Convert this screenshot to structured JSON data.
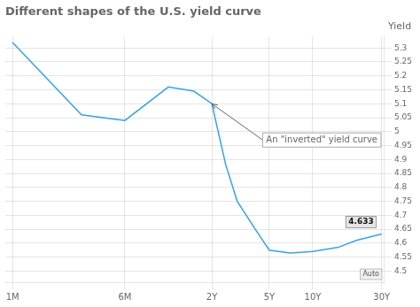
{
  "chart_data": {
    "type": "line",
    "title": "Different shapes of the U.S. yield curve",
    "ylabel": "Yield",
    "x": [
      1,
      3,
      6,
      12,
      18,
      24,
      30,
      36,
      48,
      60,
      84,
      120,
      180,
      240,
      360
    ],
    "values": [
      5.32,
      5.06,
      5.04,
      5.16,
      5.145,
      5.1,
      4.88,
      4.75,
      4.65,
      4.575,
      4.565,
      4.57,
      4.585,
      4.61,
      4.633
    ],
    "log": "x",
    "xlim": [
      0.89125,
      376.966
    ],
    "xticks": [
      {
        "value": 1,
        "label": "1M"
      },
      {
        "value": 6,
        "label": "6M"
      },
      {
        "value": 24,
        "label": "2Y"
      },
      {
        "value": 60,
        "label": "5Y"
      },
      {
        "value": 120,
        "label": "10Y"
      },
      {
        "value": 360,
        "label": "30Y"
      }
    ],
    "ylim": [
      4.46,
      5.34
    ],
    "yticks": [
      4.5,
      4.55,
      4.6,
      4.65,
      4.7,
      4.75,
      4.8,
      4.85,
      4.9,
      4.95,
      5,
      5.05,
      5.1,
      5.15,
      5.2,
      5.25,
      5.3
    ],
    "grid": true,
    "annotations": [
      {
        "text": "An \"inverted\" yield curve",
        "x": 60,
        "y": 4.97,
        "arrow_x": 24,
        "arrow_y": 5.1
      },
      {
        "text": "4.633",
        "x": 360,
        "y": 4.633
      },
      {
        "text": "Auto"
      }
    ]
  }
}
